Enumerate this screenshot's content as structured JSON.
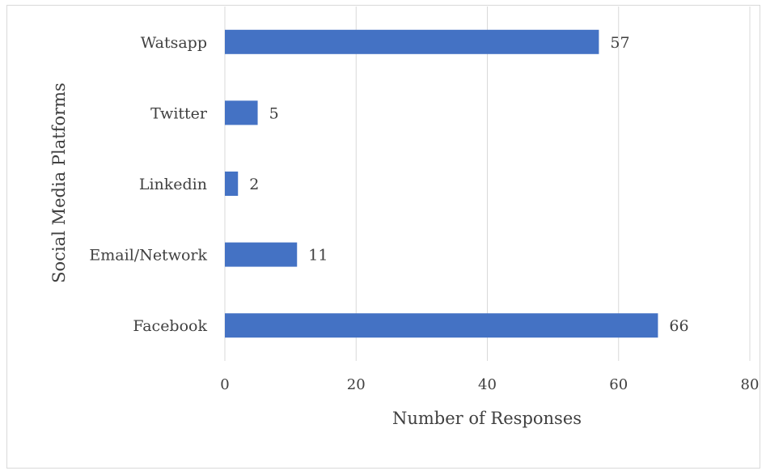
{
  "chart_data": {
    "type": "bar",
    "orientation": "horizontal",
    "categories": [
      "Watsapp",
      "Twitter",
      "Linkedin",
      "Email/Network",
      "Facebook"
    ],
    "values": [
      57,
      5,
      2,
      11,
      66
    ],
    "xlabel": "Number of Responses",
    "ylabel": "Social Media Platforms",
    "xlim": [
      0,
      80
    ],
    "xticks": [
      0,
      20,
      40,
      60,
      80
    ],
    "grid": true,
    "data_labels": true,
    "bar_color": "#4472c4",
    "legend": "none"
  }
}
